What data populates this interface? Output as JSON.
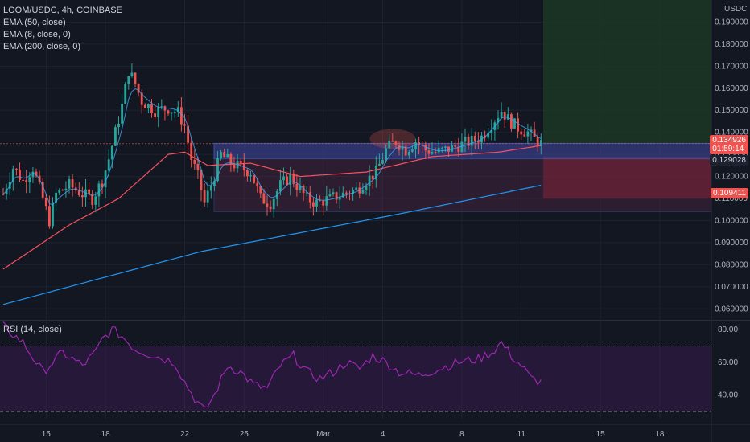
{
  "header": {
    "symbol_line": "LOOM/USDC, 4h, COINBASE",
    "indicators": [
      "EMA (50, close)",
      "EMA (8, close, 0)",
      "EMA (200, close, 0)"
    ]
  },
  "rsi_panel": {
    "label": "RSI (14, close)"
  },
  "axis": {
    "currency": "USDC",
    "price_ticks": [
      "0.190000",
      "0.180000",
      "0.170000",
      "0.160000",
      "0.150000",
      "0.140000",
      "0.130000",
      "0.120000",
      "0.110000",
      "0.100000",
      "0.090000",
      "0.080000",
      "0.070000",
      "0.060000"
    ],
    "rsi_ticks": [
      "80.00",
      "60.00",
      "40.00"
    ],
    "date_ticks": [
      "15",
      "18",
      "22",
      "25",
      "Mar",
      "4",
      "8",
      "11",
      "15",
      "18"
    ]
  },
  "badges": {
    "last_price": "0.134926",
    "countdown": "01:59:14",
    "level_mid": "0.129028",
    "stop_level": "0.109411"
  },
  "colors": {
    "background": "#131722",
    "up": "#26a69a",
    "down": "#ef5350",
    "ema50": "#f7525f",
    "ema8": "#42a5f5",
    "ema200": "#2196f3",
    "rsi_line": "#9c27b0",
    "profit_zone": "#1b3a26",
    "loss_zone": "#6b1d2a"
  },
  "chart_data": {
    "type": "candlestick",
    "symbol": "LOOM/USDC",
    "timeframe": "4h",
    "exchange": "COINBASE",
    "y_range": [
      0.055,
      0.2
    ],
    "rsi_range": [
      25,
      85
    ],
    "x_ticks": [
      {
        "label": "15",
        "index": 13
      },
      {
        "label": "18",
        "index": 31
      },
      {
        "label": "22",
        "index": 55
      },
      {
        "label": "25",
        "index": 73
      },
      {
        "label": "Mar",
        "index": 97
      },
      {
        "label": "4",
        "index": 115
      },
      {
        "label": "8",
        "index": 139
      },
      {
        "label": "11",
        "index": 157
      },
      {
        "label": "15",
        "index": 181
      },
      {
        "label": "18",
        "index": 199
      }
    ],
    "candle_count": 164,
    "anchors": [
      [
        0,
        0.112
      ],
      [
        3,
        0.124
      ],
      [
        6,
        0.118
      ],
      [
        9,
        0.124
      ],
      [
        12,
        0.11
      ],
      [
        14,
        0.1
      ],
      [
        16,
        0.112
      ],
      [
        20,
        0.116
      ],
      [
        24,
        0.112
      ],
      [
        27,
        0.11
      ],
      [
        30,
        0.118
      ],
      [
        32,
        0.128
      ],
      [
        34,
        0.14
      ],
      [
        36,
        0.152
      ],
      [
        38,
        0.168
      ],
      [
        40,
        0.162
      ],
      [
        42,
        0.154
      ],
      [
        46,
        0.15
      ],
      [
        50,
        0.151
      ],
      [
        53,
        0.149
      ],
      [
        55,
        0.143
      ],
      [
        57,
        0.128
      ],
      [
        59,
        0.12
      ],
      [
        61,
        0.108
      ],
      [
        63,
        0.116
      ],
      [
        66,
        0.13
      ],
      [
        69,
        0.126
      ],
      [
        72,
        0.124
      ],
      [
        75,
        0.122
      ],
      [
        78,
        0.11
      ],
      [
        81,
        0.108
      ],
      [
        84,
        0.116
      ],
      [
        87,
        0.12
      ],
      [
        90,
        0.114
      ],
      [
        92,
        0.11
      ],
      [
        95,
        0.108
      ],
      [
        99,
        0.11
      ],
      [
        103,
        0.112
      ],
      [
        107,
        0.114
      ],
      [
        110,
        0.118
      ],
      [
        113,
        0.122
      ],
      [
        116,
        0.132
      ],
      [
        119,
        0.136
      ],
      [
        122,
        0.132
      ],
      [
        125,
        0.136
      ],
      [
        128,
        0.132
      ],
      [
        131,
        0.131
      ],
      [
        134,
        0.132
      ],
      [
        138,
        0.134
      ],
      [
        142,
        0.136
      ],
      [
        145,
        0.138
      ],
      [
        148,
        0.144
      ],
      [
        151,
        0.15
      ],
      [
        153,
        0.146
      ],
      [
        156,
        0.142
      ],
      [
        159,
        0.14
      ],
      [
        161,
        0.137
      ],
      [
        163,
        0.135
      ]
    ],
    "ema200": [
      [
        0,
        0.062
      ],
      [
        60,
        0.086
      ],
      [
        120,
        0.103
      ],
      [
        163,
        0.116
      ]
    ],
    "ema50": [
      [
        0,
        0.078
      ],
      [
        20,
        0.098
      ],
      [
        35,
        0.11
      ],
      [
        50,
        0.13
      ],
      [
        55,
        0.131
      ],
      [
        62,
        0.125
      ],
      [
        75,
        0.126
      ],
      [
        90,
        0.12
      ],
      [
        110,
        0.122
      ],
      [
        130,
        0.129
      ],
      [
        150,
        0.131
      ],
      [
        163,
        0.134
      ]
    ],
    "rsi_anchors": [
      [
        0,
        82
      ],
      [
        6,
        72
      ],
      [
        12,
        54
      ],
      [
        18,
        66
      ],
      [
        24,
        58
      ],
      [
        28,
        66
      ],
      [
        30,
        74
      ],
      [
        33,
        80
      ],
      [
        36,
        76
      ],
      [
        40,
        68
      ],
      [
        46,
        64
      ],
      [
        52,
        60
      ],
      [
        55,
        48
      ],
      [
        58,
        38
      ],
      [
        61,
        30
      ],
      [
        64,
        40
      ],
      [
        68,
        58
      ],
      [
        72,
        54
      ],
      [
        76,
        46
      ],
      [
        80,
        44
      ],
      [
        84,
        58
      ],
      [
        88,
        64
      ],
      [
        92,
        54
      ],
      [
        96,
        50
      ],
      [
        100,
        54
      ],
      [
        104,
        60
      ],
      [
        108,
        56
      ],
      [
        112,
        64
      ],
      [
        116,
        60
      ],
      [
        120,
        54
      ],
      [
        126,
        52
      ],
      [
        132,
        56
      ],
      [
        138,
        60
      ],
      [
        144,
        62
      ],
      [
        148,
        66
      ],
      [
        151,
        72
      ],
      [
        154,
        64
      ],
      [
        157,
        58
      ],
      [
        160,
        50
      ],
      [
        163,
        48
      ]
    ],
    "rsi_bands": [
      70,
      30
    ],
    "annotations": {
      "range_box": [
        0.104,
        0.135
      ],
      "blue_zone": [
        0.128,
        0.135
      ],
      "profit_zone": [
        0.135,
        0.2
      ],
      "loss_zone": [
        0.11,
        0.129
      ],
      "ellipse_center": [
        0.135
      ]
    }
  }
}
